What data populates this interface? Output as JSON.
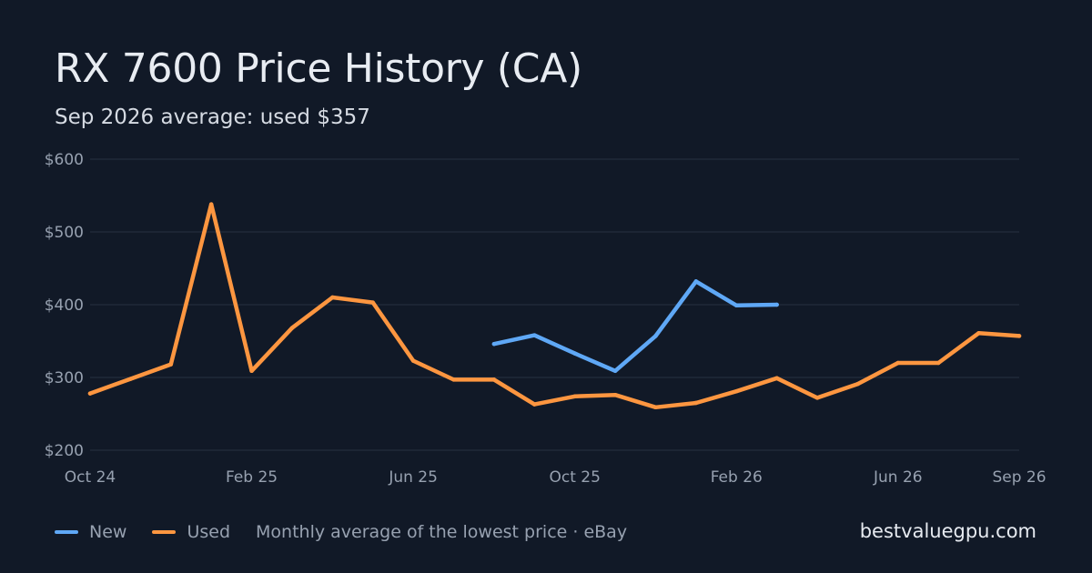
{
  "header": {
    "title": "RX 7600 Price History (CA)",
    "subtitle": "Sep 2026 average: used $357"
  },
  "legend": {
    "items": [
      {
        "label": "New",
        "color": "#5fa8f6"
      },
      {
        "label": "Used",
        "color": "#fd9640"
      }
    ],
    "note": "Monthly average of the lowest price · eBay"
  },
  "footer": {
    "site": "bestvaluegpu.com"
  },
  "colors": {
    "background": "#111927",
    "grid": "#263142",
    "axis_text": "#97a1b0"
  },
  "chart_data": {
    "type": "line",
    "title": "RX 7600 Price History (CA)",
    "subtitle": "Sep 2026 average: used $357",
    "xlabel": "",
    "ylabel": "",
    "x": [
      "2024-10",
      "2024-11",
      "2024-12",
      "2025-01",
      "2025-02",
      "2025-03",
      "2025-04",
      "2025-05",
      "2025-06",
      "2025-07",
      "2025-08",
      "2025-09",
      "2025-10",
      "2025-11",
      "2025-12",
      "2026-01",
      "2026-02",
      "2026-03",
      "2026-04",
      "2026-05",
      "2026-06",
      "2026-07",
      "2026-08",
      "2026-09"
    ],
    "x_ticks": [
      {
        "x": "2024-10",
        "label": "Oct 24"
      },
      {
        "x": "2025-02",
        "label": "Feb 25"
      },
      {
        "x": "2025-06",
        "label": "Jun 25"
      },
      {
        "x": "2025-10",
        "label": "Oct 25"
      },
      {
        "x": "2026-02",
        "label": "Feb 26"
      },
      {
        "x": "2026-06",
        "label": "Jun 26"
      },
      {
        "x": "2026-09",
        "label": "Sep 26"
      }
    ],
    "y_ticks": [
      {
        "value": 200,
        "label": "$200"
      },
      {
        "value": 300,
        "label": "$300"
      },
      {
        "value": 400,
        "label": "$400"
      },
      {
        "value": 500,
        "label": "$500"
      },
      {
        "value": 600,
        "label": "$600"
      }
    ],
    "ylim": [
      200,
      600
    ],
    "grid": true,
    "legend_position": "bottom-left",
    "series": [
      {
        "name": "New",
        "color": "#5fa8f6",
        "values": [
          null,
          null,
          null,
          null,
          null,
          null,
          null,
          null,
          null,
          null,
          346,
          358,
          333,
          309,
          357,
          432,
          399,
          400,
          null,
          null,
          null,
          null,
          null,
          null
        ]
      },
      {
        "name": "Used",
        "color": "#fd9640",
        "values": [
          278,
          298,
          318,
          538,
          309,
          368,
          410,
          403,
          323,
          297,
          297,
          263,
          274,
          276,
          259,
          265,
          281,
          299,
          272,
          291,
          320,
          320,
          361,
          357
        ]
      }
    ]
  }
}
